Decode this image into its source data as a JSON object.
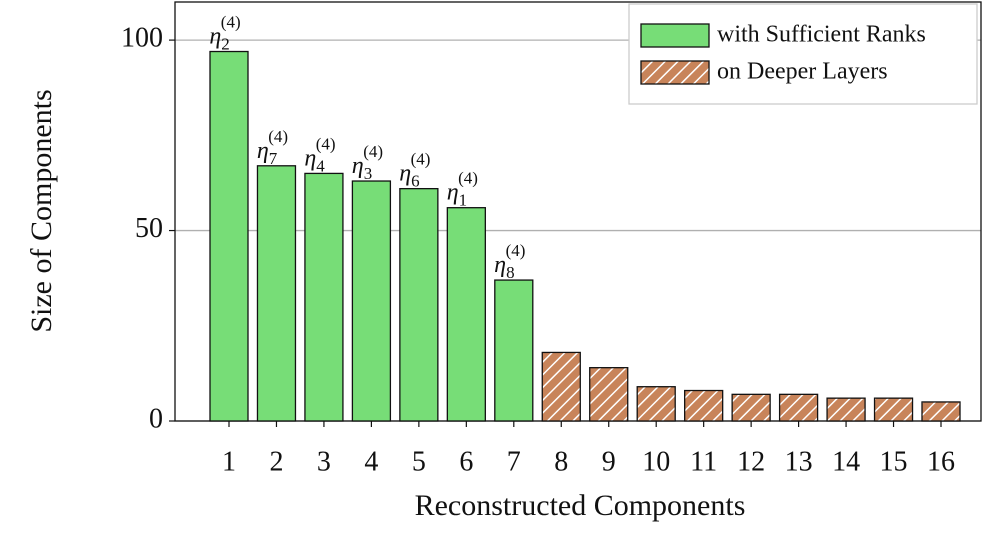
{
  "chart_data": {
    "type": "bar",
    "xlabel": "Reconstructed Components",
    "ylabel": "Size of Components",
    "categories": [
      "1",
      "2",
      "3",
      "4",
      "5",
      "6",
      "7",
      "8",
      "9",
      "10",
      "11",
      "12",
      "13",
      "14",
      "15",
      "16"
    ],
    "series": [
      {
        "name": "with Sufficient Ranks",
        "color": "#77dd77",
        "pattern": "solid",
        "values": [
          97,
          67,
          65,
          63,
          61,
          56,
          37,
          null,
          null,
          null,
          null,
          null,
          null,
          null,
          null,
          null
        ]
      },
      {
        "name": "on Deeper Layers",
        "color": "#c8845a",
        "pattern": "hatch",
        "values": [
          null,
          null,
          null,
          null,
          null,
          null,
          null,
          18,
          14,
          9,
          8,
          7,
          7,
          6,
          6,
          5
        ]
      }
    ],
    "annotations": [
      {
        "base": "η",
        "sub": "2",
        "sup": "(4)"
      },
      {
        "base": "η",
        "sub": "7",
        "sup": "(4)"
      },
      {
        "base": "η",
        "sub": "4",
        "sup": "(4)"
      },
      {
        "base": "η",
        "sub": "3",
        "sup": "(4)"
      },
      {
        "base": "η",
        "sub": "6",
        "sup": "(4)"
      },
      {
        "base": "η",
        "sub": "1",
        "sup": "(4)"
      },
      {
        "base": "η",
        "sub": "8",
        "sup": "(4)"
      }
    ],
    "ylim": [
      0,
      110
    ],
    "yticks": [
      0,
      50,
      100
    ],
    "grid": true,
    "legend": "upper right"
  }
}
